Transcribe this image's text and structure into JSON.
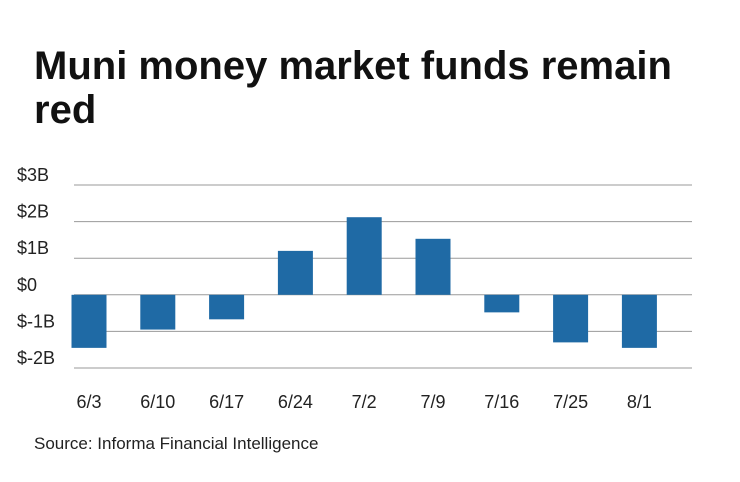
{
  "chart_data": {
    "type": "bar",
    "title": "Muni money market funds remain red",
    "source": "Source: Informa Financial Intelligence",
    "categories": [
      "6/3",
      "6/10",
      "6/17",
      "6/24",
      "7/2",
      "7/9",
      "7/16",
      "7/25",
      "8/1"
    ],
    "values": [
      -1.45,
      -0.95,
      -0.67,
      1.2,
      2.12,
      1.53,
      -0.48,
      -1.3,
      -1.45
    ],
    "units": "billions of dollars",
    "ylim": [
      -2,
      3
    ],
    "yticks": [
      {
        "value": 3,
        "label": "$3B"
      },
      {
        "value": 2,
        "label": "$2B"
      },
      {
        "value": 1,
        "label": "$1B"
      },
      {
        "value": 0,
        "label": "$0"
      },
      {
        "value": -1,
        "label": "$-1B"
      },
      {
        "value": -2,
        "label": "$-2B"
      }
    ],
    "grid": true,
    "legend": "none",
    "bar_color": "#1f6aa5",
    "grid_color": "#9a9a9a"
  }
}
